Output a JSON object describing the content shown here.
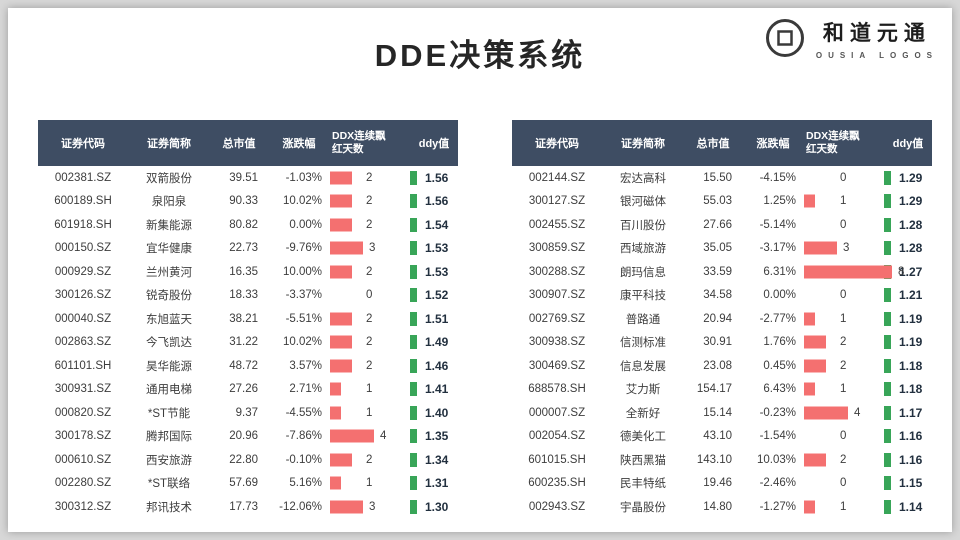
{
  "page": {
    "title": "DDE决策系统",
    "logo_name": "和道元通",
    "logo_subtitle": "OUSIA LOGOS"
  },
  "colors": {
    "header_bg": "#3e4d63",
    "bar_red": "#f47070",
    "bar_green": "#38a558"
  },
  "columns": [
    "证券代码",
    "证券简称",
    "总市值",
    "涨跌幅",
    "DDX连续飘红天数",
    "ddy值"
  ],
  "tables": [
    {
      "rows": [
        {
          "code": "002381.SZ",
          "name": "双箭股份",
          "cap": "39.51",
          "chg": "-1.03%",
          "ddx": 2,
          "ddy": "1.56"
        },
        {
          "code": "600189.SH",
          "name": "泉阳泉",
          "cap": "90.33",
          "chg": "10.02%",
          "ddx": 2,
          "ddy": "1.56"
        },
        {
          "code": "601918.SH",
          "name": "新集能源",
          "cap": "80.82",
          "chg": "0.00%",
          "ddx": 2,
          "ddy": "1.54"
        },
        {
          "code": "000150.SZ",
          "name": "宜华健康",
          "cap": "22.73",
          "chg": "-9.76%",
          "ddx": 3,
          "ddy": "1.53"
        },
        {
          "code": "000929.SZ",
          "name": "兰州黄河",
          "cap": "16.35",
          "chg": "10.00%",
          "ddx": 2,
          "ddy": "1.53"
        },
        {
          "code": "300126.SZ",
          "name": "锐奇股份",
          "cap": "18.33",
          "chg": "-3.37%",
          "ddx": 0,
          "ddy": "1.52"
        },
        {
          "code": "000040.SZ",
          "name": "东旭蓝天",
          "cap": "38.21",
          "chg": "-5.51%",
          "ddx": 2,
          "ddy": "1.51"
        },
        {
          "code": "002863.SZ",
          "name": "今飞凯达",
          "cap": "31.22",
          "chg": "10.02%",
          "ddx": 2,
          "ddy": "1.49"
        },
        {
          "code": "601101.SH",
          "name": "昊华能源",
          "cap": "48.72",
          "chg": "3.57%",
          "ddx": 2,
          "ddy": "1.46"
        },
        {
          "code": "300931.SZ",
          "name": "通用电梯",
          "cap": "27.26",
          "chg": "2.71%",
          "ddx": 1,
          "ddy": "1.41"
        },
        {
          "code": "000820.SZ",
          "name": "*ST节能",
          "cap": "9.37",
          "chg": "-4.55%",
          "ddx": 1,
          "ddy": "1.40"
        },
        {
          "code": "300178.SZ",
          "name": "腾邦国际",
          "cap": "20.96",
          "chg": "-7.86%",
          "ddx": 4,
          "ddy": "1.35"
        },
        {
          "code": "000610.SZ",
          "name": "西安旅游",
          "cap": "22.80",
          "chg": "-0.10%",
          "ddx": 2,
          "ddy": "1.34"
        },
        {
          "code": "002280.SZ",
          "name": "*ST联络",
          "cap": "57.69",
          "chg": "5.16%",
          "ddx": 1,
          "ddy": "1.31"
        },
        {
          "code": "300312.SZ",
          "name": "邦讯技术",
          "cap": "17.73",
          "chg": "-12.06%",
          "ddx": 3,
          "ddy": "1.30"
        }
      ]
    },
    {
      "rows": [
        {
          "code": "002144.SZ",
          "name": "宏达高科",
          "cap": "15.50",
          "chg": "-4.15%",
          "ddx": 0,
          "ddy": "1.29"
        },
        {
          "code": "300127.SZ",
          "name": "银河磁体",
          "cap": "55.03",
          "chg": "1.25%",
          "ddx": 1,
          "ddy": "1.29"
        },
        {
          "code": "002455.SZ",
          "name": "百川股份",
          "cap": "27.66",
          "chg": "-5.14%",
          "ddx": 0,
          "ddy": "1.28"
        },
        {
          "code": "300859.SZ",
          "name": "西域旅游",
          "cap": "35.05",
          "chg": "-3.17%",
          "ddx": 3,
          "ddy": "1.28"
        },
        {
          "code": "300288.SZ",
          "name": "朗玛信息",
          "cap": "33.59",
          "chg": "6.31%",
          "ddx": 8,
          "ddy": "1.27"
        },
        {
          "code": "300907.SZ",
          "name": "康平科技",
          "cap": "34.58",
          "chg": "0.00%",
          "ddx": 0,
          "ddy": "1.21"
        },
        {
          "code": "002769.SZ",
          "name": "普路通",
          "cap": "20.94",
          "chg": "-2.77%",
          "ddx": 1,
          "ddy": "1.19"
        },
        {
          "code": "300938.SZ",
          "name": "信测标准",
          "cap": "30.91",
          "chg": "1.76%",
          "ddx": 2,
          "ddy": "1.19"
        },
        {
          "code": "300469.SZ",
          "name": "信息发展",
          "cap": "23.08",
          "chg": "0.45%",
          "ddx": 2,
          "ddy": "1.18"
        },
        {
          "code": "688578.SH",
          "name": "艾力斯",
          "cap": "154.17",
          "chg": "6.43%",
          "ddx": 1,
          "ddy": "1.18"
        },
        {
          "code": "000007.SZ",
          "name": "全新好",
          "cap": "15.14",
          "chg": "-0.23%",
          "ddx": 4,
          "ddy": "1.17"
        },
        {
          "code": "002054.SZ",
          "name": "德美化工",
          "cap": "43.10",
          "chg": "-1.54%",
          "ddx": 0,
          "ddy": "1.16"
        },
        {
          "code": "601015.SH",
          "name": "陕西黑猫",
          "cap": "143.10",
          "chg": "10.03%",
          "ddx": 2,
          "ddy": "1.16"
        },
        {
          "code": "600235.SH",
          "name": "民丰特纸",
          "cap": "19.46",
          "chg": "-2.46%",
          "ddx": 0,
          "ddy": "1.15"
        },
        {
          "code": "002943.SZ",
          "name": "宇晶股份",
          "cap": "14.80",
          "chg": "-1.27%",
          "ddx": 1,
          "ddy": "1.14"
        }
      ]
    }
  ]
}
